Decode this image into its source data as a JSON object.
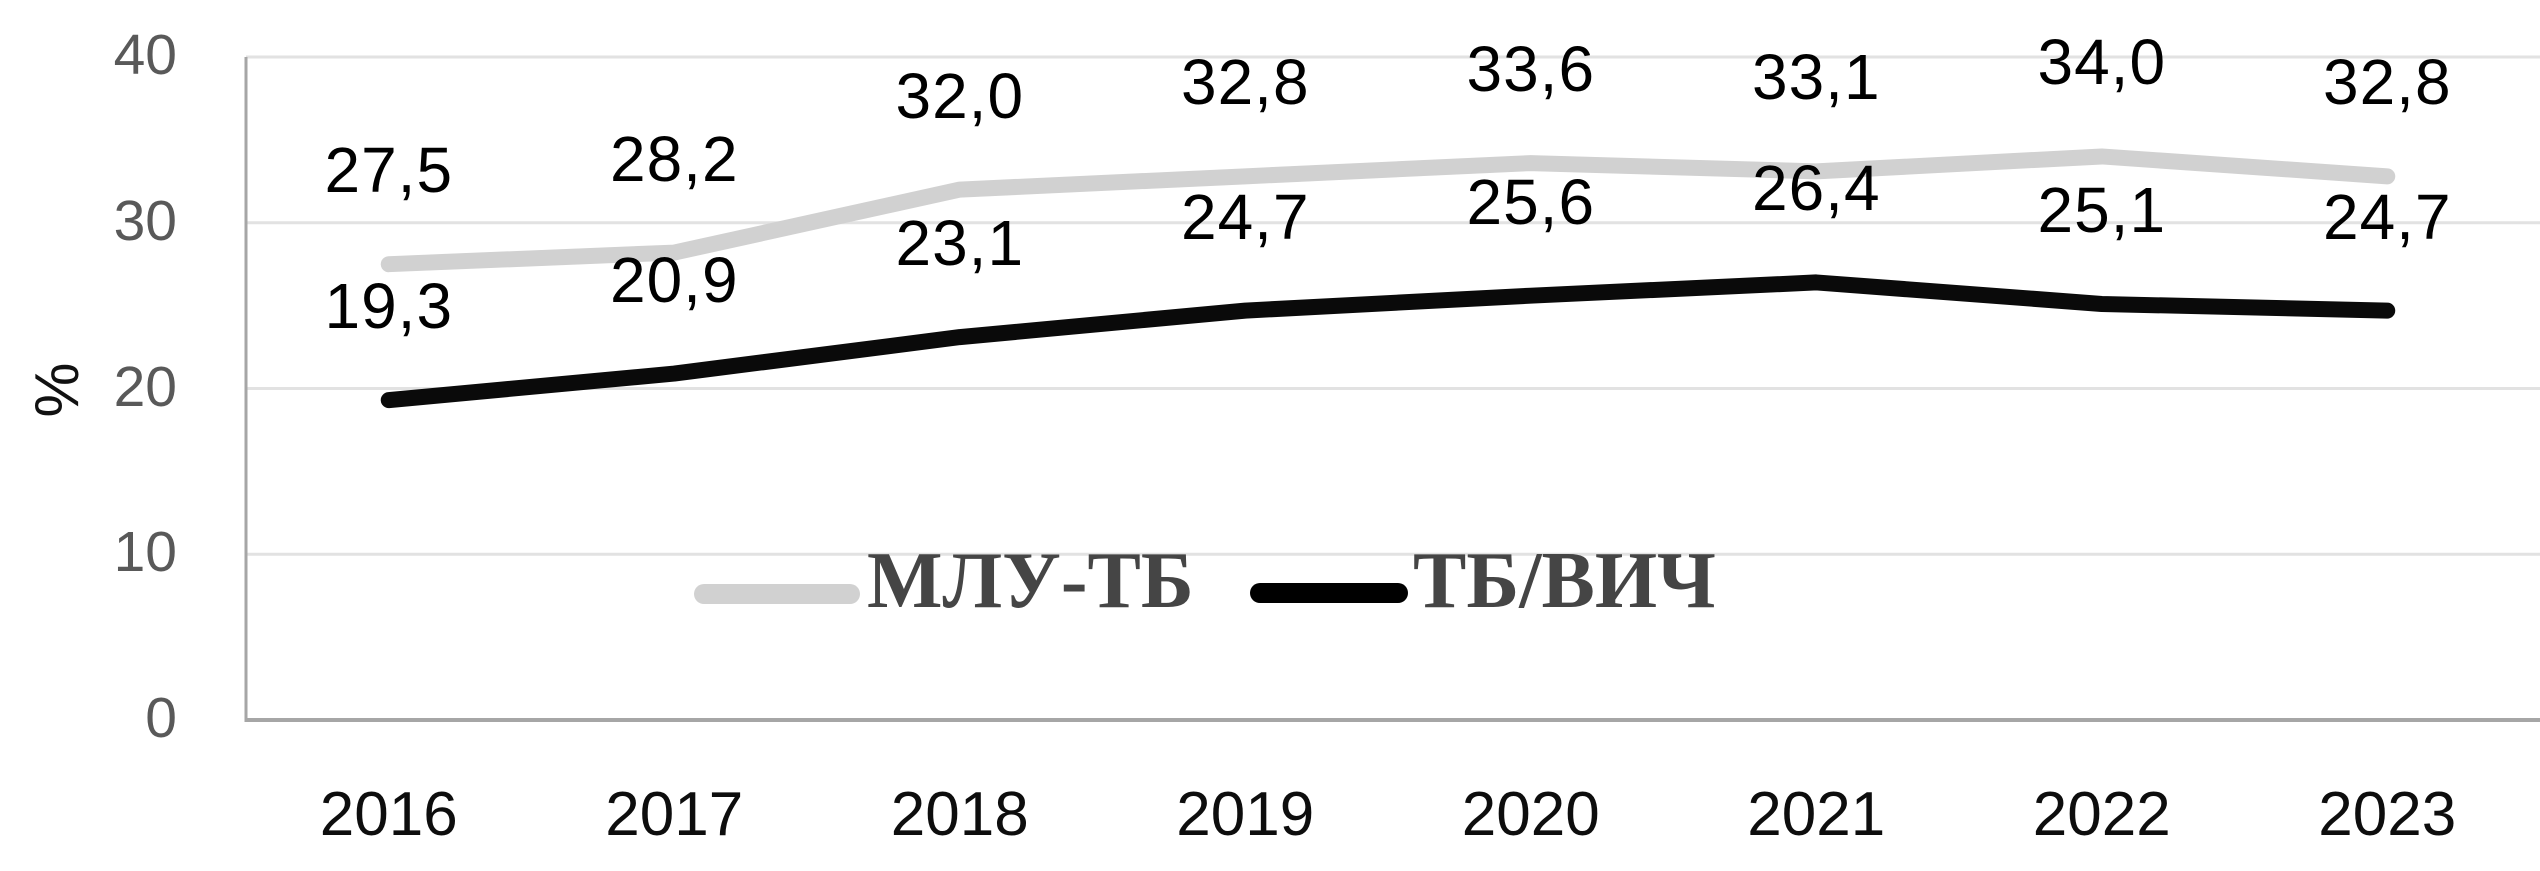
{
  "chart_data": {
    "type": "line",
    "categories": [
      "2016",
      "2017",
      "2018",
      "2019",
      "2020",
      "2021",
      "2022",
      "2023"
    ],
    "series": [
      {
        "name": "МЛУ-ТБ",
        "values": [
          27.5,
          28.2,
          32.0,
          32.8,
          33.6,
          33.1,
          34.0,
          32.8
        ],
        "point_labels": [
          "27,5",
          "28,2",
          "32,0",
          "32,8",
          "33,6",
          "33,1",
          "34,0",
          "32,8"
        ],
        "color": "#d1d1d1"
      },
      {
        "name": "ТБ/ВИЧ",
        "values": [
          19.3,
          20.9,
          23.1,
          24.7,
          25.6,
          26.4,
          25.1,
          24.7
        ],
        "point_labels": [
          "19,3",
          "20,9",
          "23,1",
          "24,7",
          "25,6",
          "26,4",
          "25,1",
          "24,7"
        ],
        "color": "#0a0a0a"
      }
    ],
    "title": "",
    "xlabel": "",
    "ylabel": "%",
    "ylim": [
      0,
      40
    ],
    "ytick_values": [
      0,
      10,
      20,
      30,
      40
    ],
    "ytick_labels": [
      "0",
      "10",
      "20",
      "30",
      "40"
    ],
    "grid": true,
    "legend_position": "bottom-center-inside"
  },
  "legend": {
    "items": [
      {
        "label": "МЛУ-ТБ",
        "swatch_color": "#d1d1d1"
      },
      {
        "label": "ТБ/ВИЧ",
        "swatch_color": "#000000"
      }
    ]
  },
  "colors": {
    "gridline": "#e2e2e2",
    "axis_line": "#a6a6a6",
    "ytick_text": "#595959",
    "xtick_text": "#0d0d0d",
    "data_label_text": "#000000",
    "legend_text": "#454545",
    "background": "#ffffff"
  }
}
